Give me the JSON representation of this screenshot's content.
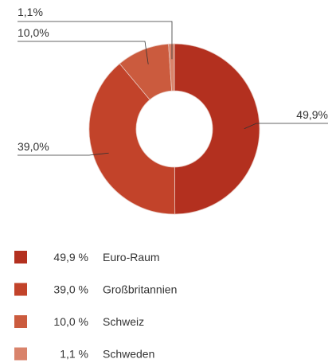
{
  "chart_data": {
    "type": "donut",
    "categories": [
      "Euro-Raum",
      "Großbritannien",
      "Schweiz",
      "Schweden"
    ],
    "values": [
      49.9,
      39.0,
      10.0,
      1.1
    ],
    "value_labels": [
      "49,9%",
      "39,0%",
      "10,0%",
      "1,1%"
    ],
    "legend_value_labels": [
      "49,9 %",
      "39,0 %",
      "10,0 %",
      "1,1 %"
    ],
    "colors": [
      "#b3301f",
      "#c2432a",
      "#cb5b3e",
      "#d9836b"
    ]
  }
}
